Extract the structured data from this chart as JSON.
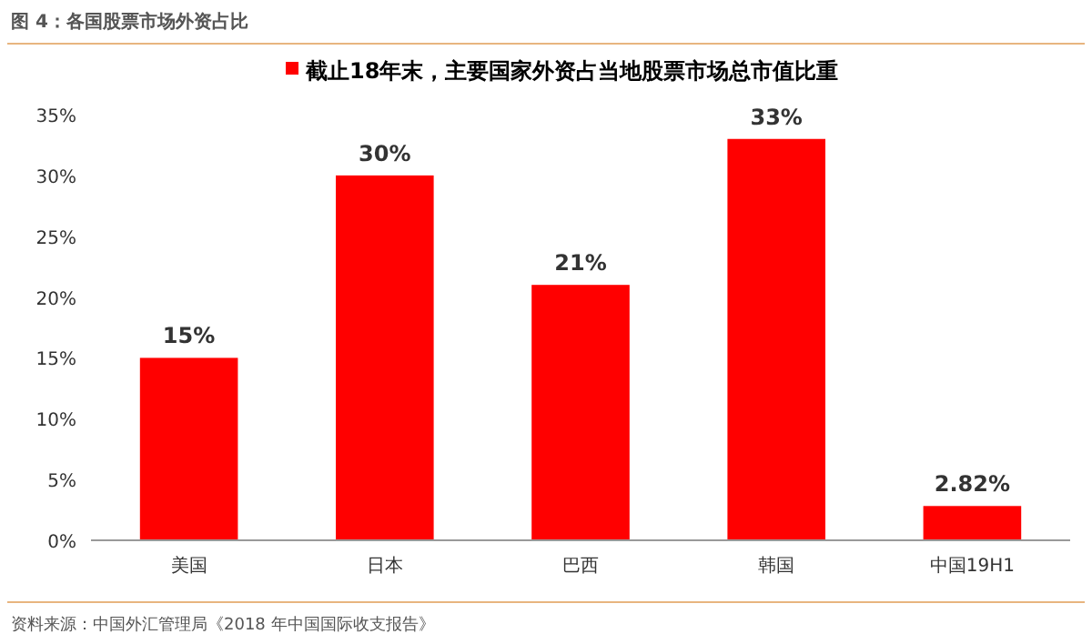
{
  "chart_data": {
    "type": "bar",
    "title": "图 4：各国股票市场外资占比",
    "annotations": [
      "资料来源：中国外汇管理局《2018 年中国国际收支报告》"
    ],
    "categories": [
      "美国",
      "日本",
      "巴西",
      "韩国",
      "中国19H1"
    ],
    "series": [
      {
        "name": "截止18年末，主要国家外资占当地股票市场总市值比重",
        "color": "#ff0000",
        "values": [
          15,
          30,
          21,
          33,
          2.82
        ],
        "value_labels": [
          "15%",
          "30%",
          "21%",
          "33%",
          "2.82%"
        ]
      }
    ],
    "ylim": [
      0,
      35
    ],
    "yticks": [
      {
        "value": 0,
        "label": "0%"
      },
      {
        "value": 5,
        "label": "5%"
      },
      {
        "value": 10,
        "label": "10%"
      },
      {
        "value": 15,
        "label": "15%"
      },
      {
        "value": 20,
        "label": "20%"
      },
      {
        "value": 25,
        "label": "25%"
      },
      {
        "value": 30,
        "label": "30%"
      },
      {
        "value": 35,
        "label": "35%"
      }
    ],
    "grid": false,
    "legend": "top"
  }
}
